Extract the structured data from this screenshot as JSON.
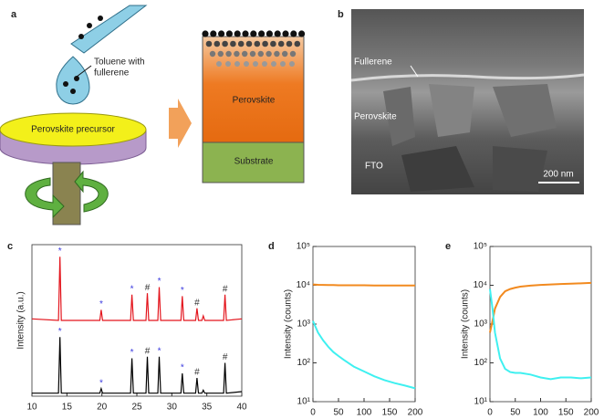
{
  "panel_labels": [
    "a",
    "b",
    "c",
    "d",
    "e"
  ],
  "schematic": {
    "dropper_label": [
      "Toluene with",
      "fullerene"
    ],
    "precursor": "Perovskite precursor",
    "layer_top": "Perovskite",
    "layer_bottom": "Substrate"
  },
  "sem": {
    "fullerene": "Fullerene",
    "perovskite": "Perovskite",
    "fto": "FTO",
    "scale_bar": "200 nm"
  },
  "chart_data": [
    {
      "type": "line",
      "ylabel": "Intensity (a.u.)",
      "xlim": [
        10,
        40
      ],
      "xticks": [
        10,
        15,
        20,
        25,
        30,
        35,
        40
      ],
      "ylim": [
        0,
        100
      ],
      "x": [
        10,
        13.8,
        14,
        14.2,
        19.7,
        19.9,
        20.1,
        24.1,
        24.3,
        24.5,
        26.3,
        26.5,
        26.7,
        28.0,
        28.2,
        28.4,
        31.3,
        31.5,
        31.7,
        33.4,
        33.6,
        33.8,
        34.3,
        34.5,
        34.7,
        37.4,
        37.6,
        37.8,
        40
      ],
      "series": [
        {
          "color": "#e3141c",
          "values": [
            51,
            50,
            92,
            50,
            50,
            57,
            50,
            50,
            67,
            50,
            50,
            68,
            50,
            50,
            72,
            50,
            50,
            66,
            50,
            50,
            58,
            50,
            50,
            53,
            50,
            50,
            67,
            50,
            51
          ]
        },
        {
          "color": "#000000",
          "values": [
            2,
            2,
            39,
            2,
            2,
            5,
            2,
            2,
            25,
            2,
            2,
            26,
            2,
            2,
            26,
            2,
            2,
            15,
            2,
            2,
            12,
            2,
            2,
            4,
            2,
            2,
            22,
            2,
            3
          ]
        }
      ],
      "markers": [
        {
          "text": "*",
          "x": 14,
          "color": "#3a3adf"
        },
        {
          "text": "*",
          "x": 19.9,
          "color": "#3a3adf"
        },
        {
          "text": "*",
          "x": 24.3,
          "color": "#3a3adf"
        },
        {
          "text": "#",
          "x": 26.5,
          "color": "#333333"
        },
        {
          "text": "*",
          "x": 28.2,
          "color": "#3a3adf"
        },
        {
          "text": "*",
          "x": 31.5,
          "color": "#3a3adf"
        },
        {
          "text": "#",
          "x": 33.6,
          "color": "#333333"
        },
        {
          "text": "#",
          "x": 37.6,
          "color": "#333333"
        }
      ]
    },
    {
      "type": "line",
      "log_y": true,
      "ylabel": "Intensity (counts)",
      "xlim": [
        0,
        200
      ],
      "xticks": [
        0,
        50,
        100,
        150,
        200
      ],
      "ylim": [
        10,
        100000
      ],
      "yticks": [
        {
          "value": 10,
          "label": "10¹"
        },
        {
          "value": 100,
          "label": "10²"
        },
        {
          "value": 1000,
          "label": "10³"
        },
        {
          "value": 10000,
          "label": "10⁴"
        },
        {
          "value": 100000,
          "label": "10⁵"
        }
      ],
      "x": [
        0,
        10,
        20,
        30,
        40,
        50,
        60,
        80,
        100,
        120,
        140,
        160,
        180,
        200
      ],
      "series": [
        {
          "color": "#f28a1f",
          "values": [
            10500,
            10300,
            10200,
            10100,
            10100,
            10000,
            10000,
            10000,
            10000,
            9900,
            9900,
            9900,
            9900,
            9900
          ]
        },
        {
          "color": "#3ff0f0",
          "values": [
            1200,
            600,
            380,
            260,
            190,
            150,
            120,
            80,
            60,
            45,
            36,
            30,
            26,
            22
          ]
        }
      ]
    },
    {
      "type": "line",
      "log_y": true,
      "ylabel": "Intensity (counts)",
      "xlim": [
        0,
        200
      ],
      "xticks": [
        0,
        50,
        100,
        150,
        200
      ],
      "ylim": [
        10,
        100000
      ],
      "yticks": [
        {
          "value": 10,
          "label": "10¹"
        },
        {
          "value": 100,
          "label": "10²"
        },
        {
          "value": 1000,
          "label": "10³"
        },
        {
          "value": 10000,
          "label": "10⁴"
        },
        {
          "value": 100000,
          "label": "10⁵"
        }
      ],
      "x": [
        0,
        5,
        10,
        20,
        30,
        40,
        50,
        60,
        80,
        100,
        120,
        140,
        160,
        180,
        200
      ],
      "series": [
        {
          "color": "#f28a1f",
          "values": [
            600,
            1200,
            2500,
            5000,
            7000,
            8000,
            8700,
            9200,
            9800,
            10200,
            10500,
            10800,
            11000,
            11200,
            11500
          ]
        },
        {
          "color": "#3ff0f0",
          "values": [
            8000,
            2500,
            600,
            130,
            70,
            58,
            55,
            55,
            50,
            42,
            38,
            42,
            42,
            40,
            42
          ]
        }
      ]
    }
  ]
}
